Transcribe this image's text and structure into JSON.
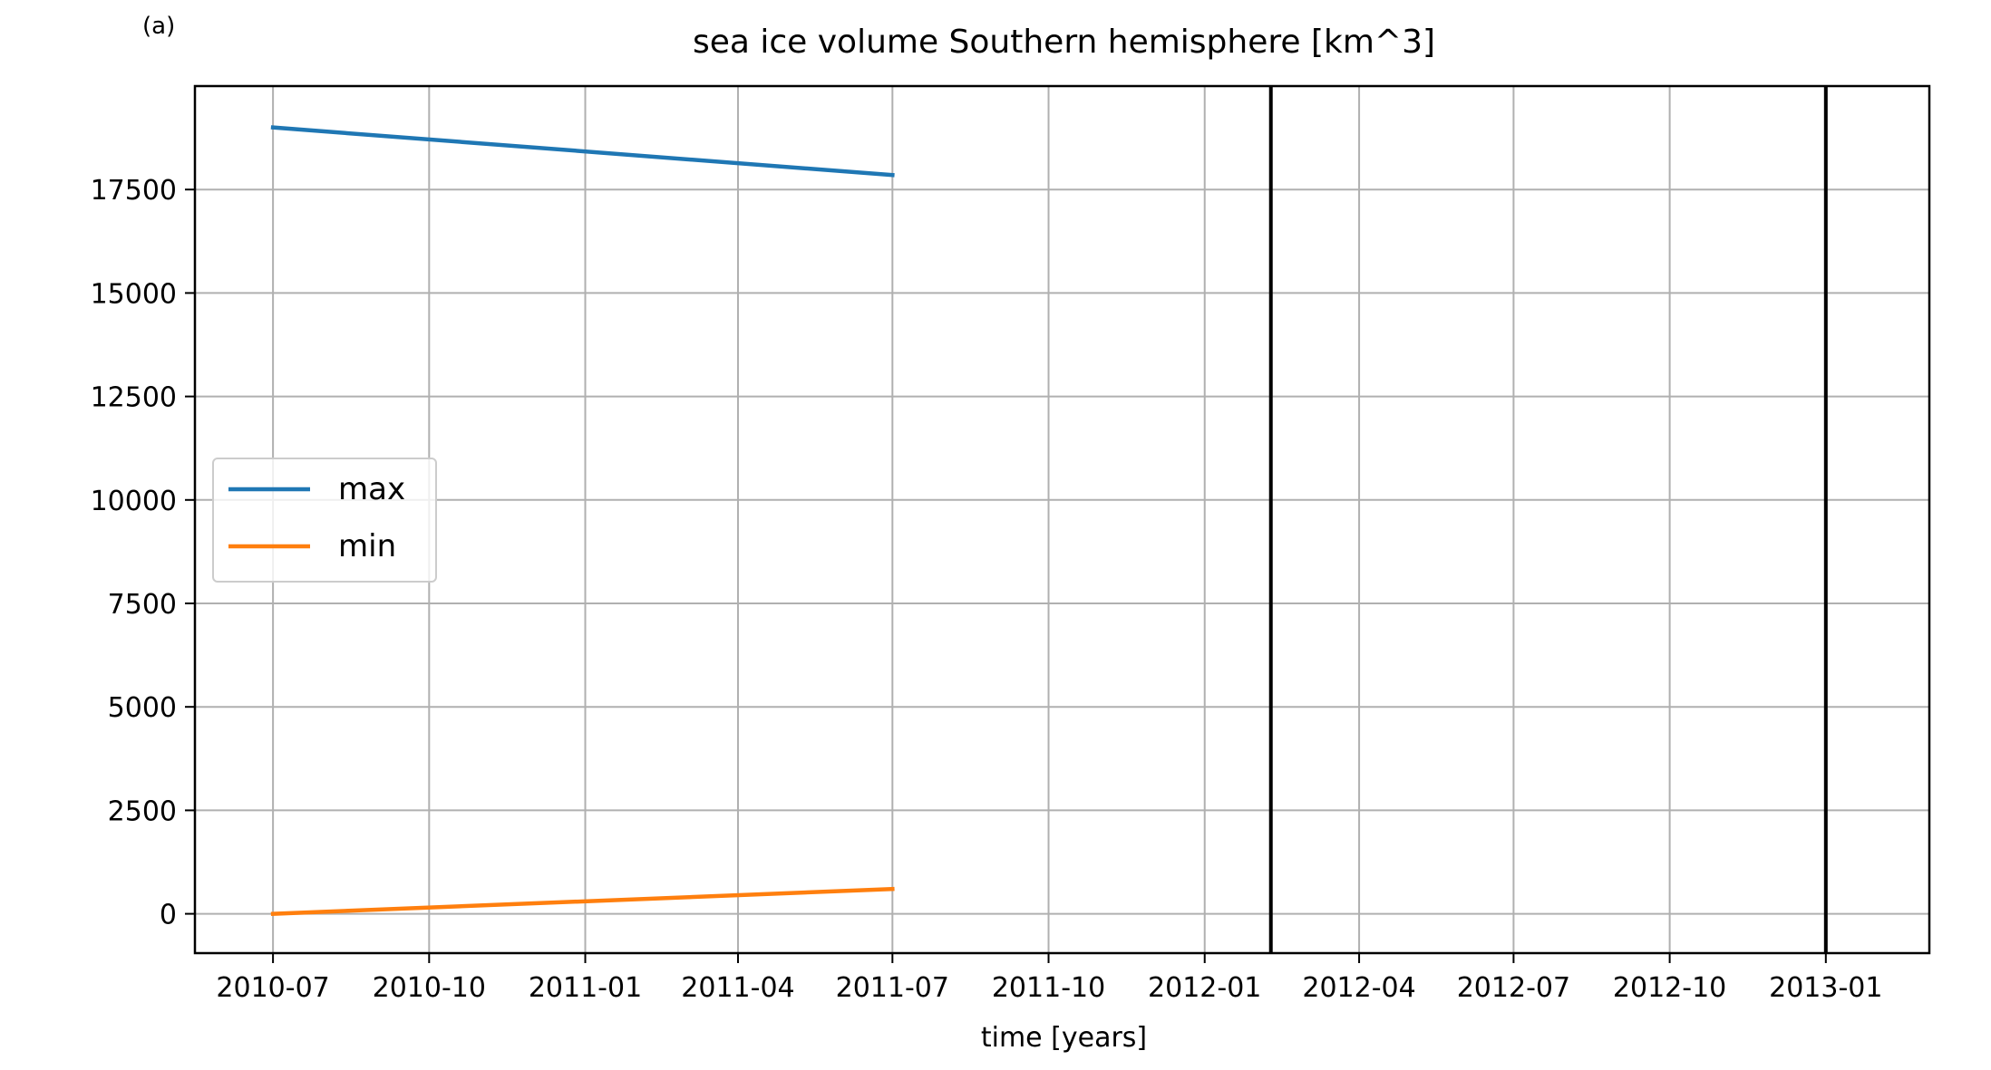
{
  "panel_label": "(a)",
  "chart_data": {
    "type": "line",
    "title": "sea ice volume Southern hemisphere [km^3]",
    "xlabel": "time [years]",
    "ylabel": "",
    "x_ticks": [
      "2010-07",
      "2010-10",
      "2011-01",
      "2011-04",
      "2011-07",
      "2011-10",
      "2012-01",
      "2012-04",
      "2012-07",
      "2012-10",
      "2013-01"
    ],
    "y_ticks": [
      0,
      2500,
      5000,
      7500,
      10000,
      12500,
      15000,
      17500
    ],
    "xlim": [
      "2010-05-16",
      "2013-03-03"
    ],
    "ylim": [
      -950,
      20000
    ],
    "grid": true,
    "legend_position": "center-left",
    "series": [
      {
        "name": "max",
        "color": "#1f77b4",
        "x": [
          "2010-07-01",
          "2011-07-01"
        ],
        "y": [
          19000,
          17850
        ]
      },
      {
        "name": "min",
        "color": "#ff7f0e",
        "x": [
          "2010-07-01",
          "2011-07-01"
        ],
        "y": [
          0,
          600
        ]
      }
    ],
    "vertical_lines": [
      {
        "x": "2012-02-09",
        "color": "#000000"
      },
      {
        "x": "2013-01-01",
        "color": "#000000"
      }
    ]
  }
}
